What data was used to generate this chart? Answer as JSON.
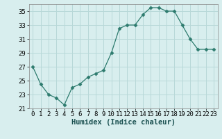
{
  "x": [
    0,
    1,
    2,
    3,
    4,
    5,
    6,
    7,
    8,
    9,
    10,
    11,
    12,
    13,
    14,
    15,
    16,
    17,
    18,
    19,
    20,
    21,
    22,
    23
  ],
  "y": [
    27,
    24.5,
    23,
    22.5,
    21.5,
    24,
    24.5,
    25.5,
    26,
    26.5,
    29,
    32.5,
    33,
    33,
    34.5,
    35.5,
    35.5,
    35,
    35,
    33,
    31,
    29.5,
    29.5,
    29.5
  ],
  "line_color": "#2d7b6e",
  "marker": "D",
  "marker_size": 2.5,
  "bg_color": "#d8eeee",
  "grid_color": "#b8d8d8",
  "xlabel": "Humidex (Indice chaleur)",
  "ylim": [
    21,
    36
  ],
  "xlim": [
    -0.5,
    23.5
  ],
  "yticks": [
    21,
    23,
    25,
    27,
    29,
    31,
    33,
    35
  ],
  "xticks": [
    0,
    1,
    2,
    3,
    4,
    5,
    6,
    7,
    8,
    9,
    10,
    11,
    12,
    13,
    14,
    15,
    16,
    17,
    18,
    19,
    20,
    21,
    22,
    23
  ],
  "tick_font_size": 6.5,
  "label_font_size": 7.5
}
